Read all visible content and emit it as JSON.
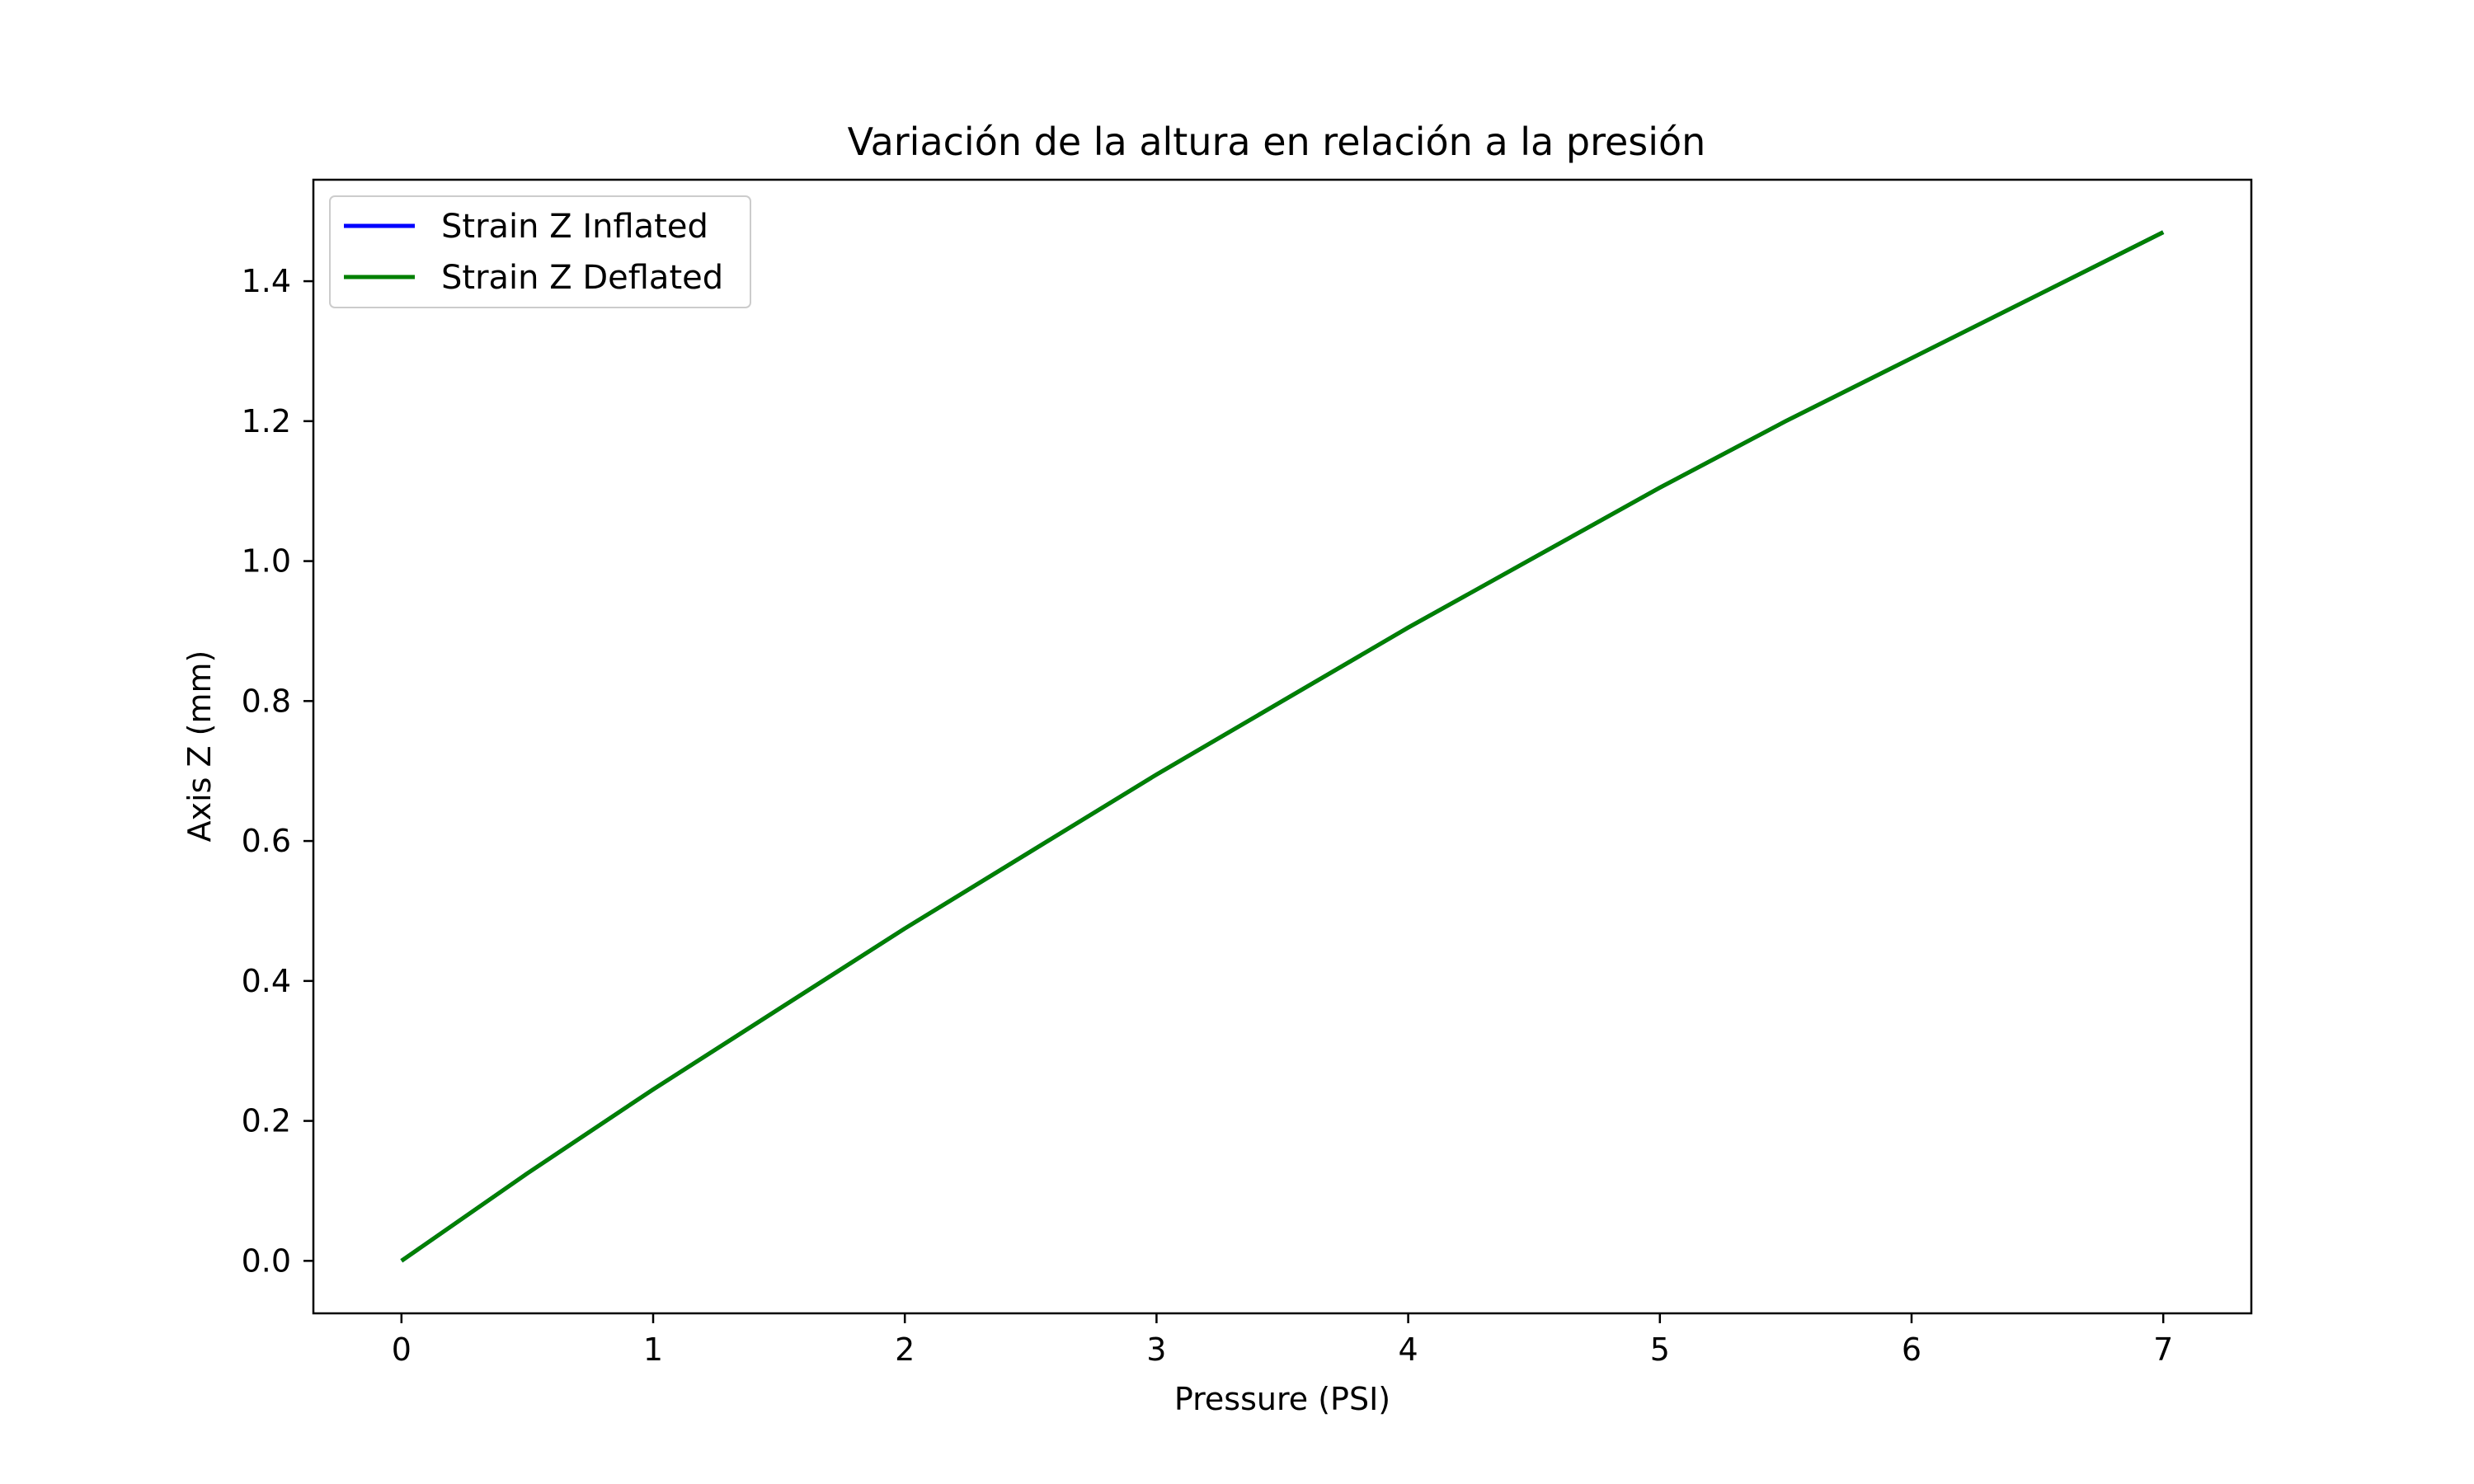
{
  "chart_data": {
    "type": "line",
    "title": "Variación de la altura en relación a la presión",
    "xlabel": "Pressure (PSI)",
    "ylabel": "Axis Z (mm)",
    "xlim": [
      -0.35,
      7.35
    ],
    "ylim": [
      -0.075,
      1.545
    ],
    "xticks": [
      0,
      1,
      2,
      3,
      4,
      5,
      6,
      7
    ],
    "yticks": [
      0.0,
      0.2,
      0.4,
      0.6,
      0.8,
      1.0,
      1.2,
      1.4
    ],
    "xtick_labels": [
      "0",
      "1",
      "2",
      "3",
      "4",
      "5",
      "6",
      "7"
    ],
    "ytick_labels": [
      "0.0",
      "0.2",
      "0.4",
      "0.6",
      "0.8",
      "1.0",
      "1.2",
      "1.4"
    ],
    "grid": false,
    "legend_position": "upper-left",
    "series": [
      {
        "name": "Strain Z Inflated",
        "color": "#0000ff",
        "x": [
          0,
          0.5,
          1,
          1.5,
          2,
          2.5,
          3,
          3.5,
          4,
          4.5,
          5,
          5.5,
          6,
          6.5,
          7
        ],
        "y": [
          0.0,
          0.125,
          0.245,
          0.36,
          0.475,
          0.585,
          0.695,
          0.8,
          0.905,
          1.005,
          1.105,
          1.2,
          1.29,
          1.38,
          1.47
        ]
      },
      {
        "name": "Strain Z Deflated",
        "color": "#008000",
        "x": [
          0,
          0.5,
          1,
          1.5,
          2,
          2.5,
          3,
          3.5,
          4,
          4.5,
          5,
          5.5,
          6,
          6.5,
          7
        ],
        "y": [
          0.0,
          0.125,
          0.245,
          0.36,
          0.475,
          0.585,
          0.695,
          0.8,
          0.905,
          1.005,
          1.105,
          1.2,
          1.29,
          1.38,
          1.47
        ]
      }
    ]
  }
}
